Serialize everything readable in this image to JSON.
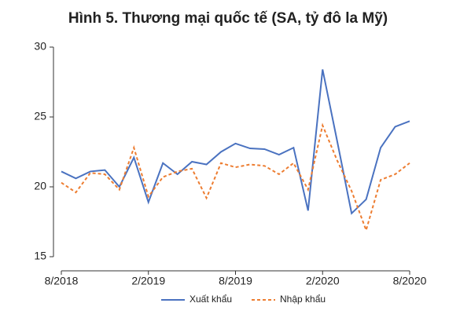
{
  "chart_data": {
    "type": "line",
    "title": "Hình 5. Thương mại quốc tế (SA, tỷ đô la Mỹ)",
    "categories": [
      "8/2018",
      null,
      null,
      null,
      null,
      null,
      "2/2019",
      null,
      null,
      null,
      null,
      null,
      "8/2019",
      null,
      null,
      null,
      null,
      null,
      "2/2020",
      null,
      null,
      null,
      null,
      null,
      "8/2020"
    ],
    "series": [
      {
        "name": "Xuất khẩu",
        "color": "#4a72c0",
        "dash": false,
        "values": [
          21.1,
          20.6,
          21.1,
          21.2,
          20.0,
          22.1,
          18.9,
          21.7,
          20.9,
          21.8,
          21.6,
          22.5,
          23.1,
          22.75,
          22.7,
          22.3,
          22.8,
          18.3,
          28.4,
          23.3,
          18.1,
          19.1,
          22.8,
          24.3,
          24.7
        ]
      },
      {
        "name": "Nhập khẩu",
        "color": "#ed7d31",
        "dash": true,
        "values": [
          20.3,
          19.6,
          21.0,
          20.9,
          19.8,
          22.8,
          19.3,
          20.7,
          21.1,
          21.3,
          19.2,
          21.7,
          21.4,
          21.6,
          21.5,
          20.9,
          21.7,
          19.8,
          24.4,
          21.9,
          19.7,
          16.9,
          20.5,
          20.9,
          21.7
        ]
      }
    ],
    "ylim": [
      15,
      30
    ],
    "yticks": [
      15,
      20,
      25,
      30
    ],
    "grid": false,
    "legend": "bottom"
  }
}
